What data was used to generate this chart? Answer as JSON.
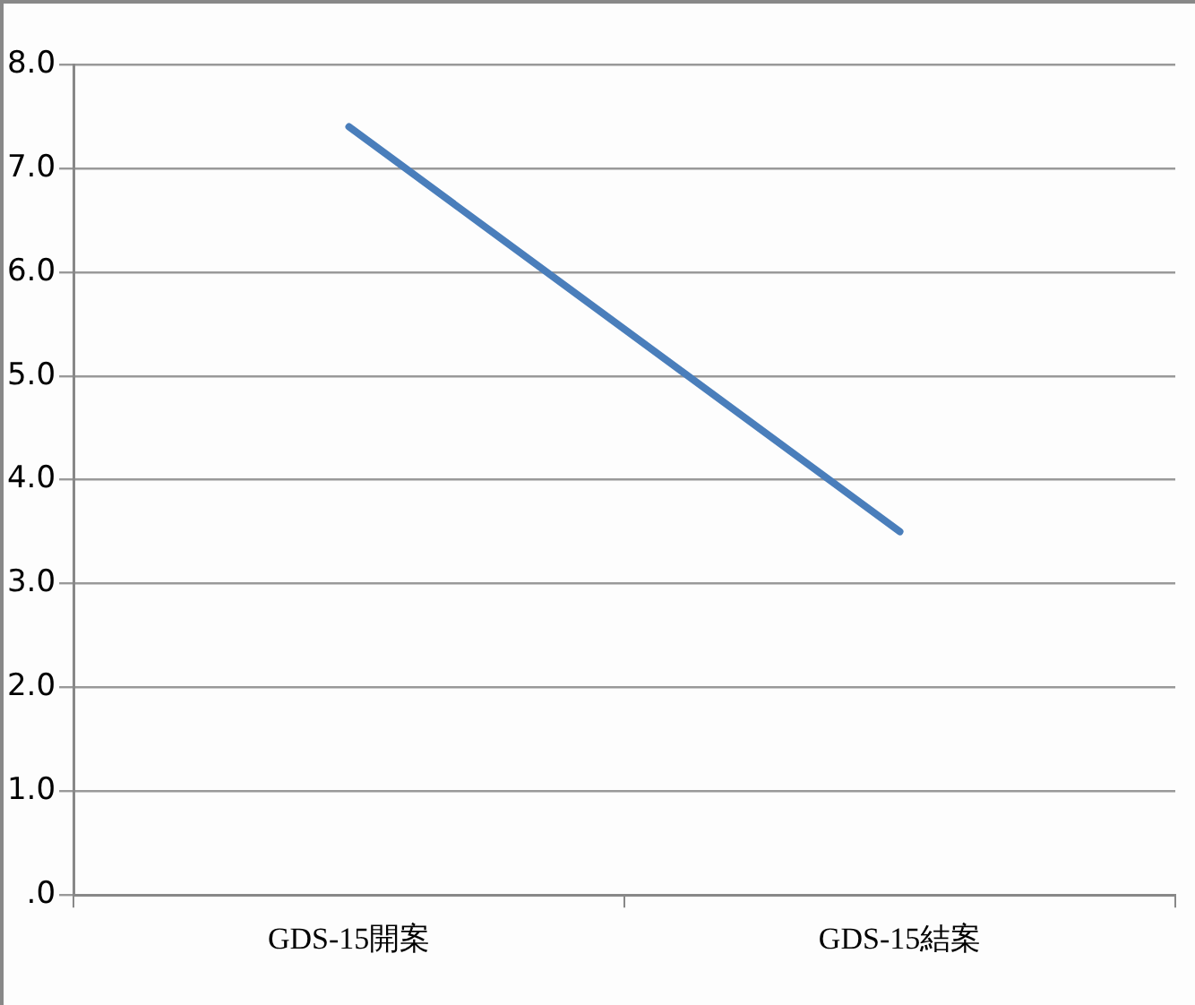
{
  "chart_data": {
    "type": "line",
    "categories": [
      "GDS-15開案",
      "GDS-15結案"
    ],
    "series": [
      {
        "color": "#4a7ebb",
        "values": [
          7.4,
          3.5
        ]
      }
    ],
    "ylim": [
      0,
      8
    ],
    "yticks": [
      {
        "value": 0,
        "label": ".0"
      },
      {
        "value": 1,
        "label": "1.0"
      },
      {
        "value": 2,
        "label": "2.0"
      },
      {
        "value": 3,
        "label": "3.0"
      },
      {
        "value": 4,
        "label": "4.0"
      },
      {
        "value": 5,
        "label": "5.0"
      },
      {
        "value": 6,
        "label": "6.0"
      },
      {
        "value": 7,
        "label": "7.0"
      },
      {
        "value": 8,
        "label": "8.0"
      }
    ],
    "grid": "y",
    "legend": false,
    "marker": "none",
    "line_style": "solid"
  }
}
